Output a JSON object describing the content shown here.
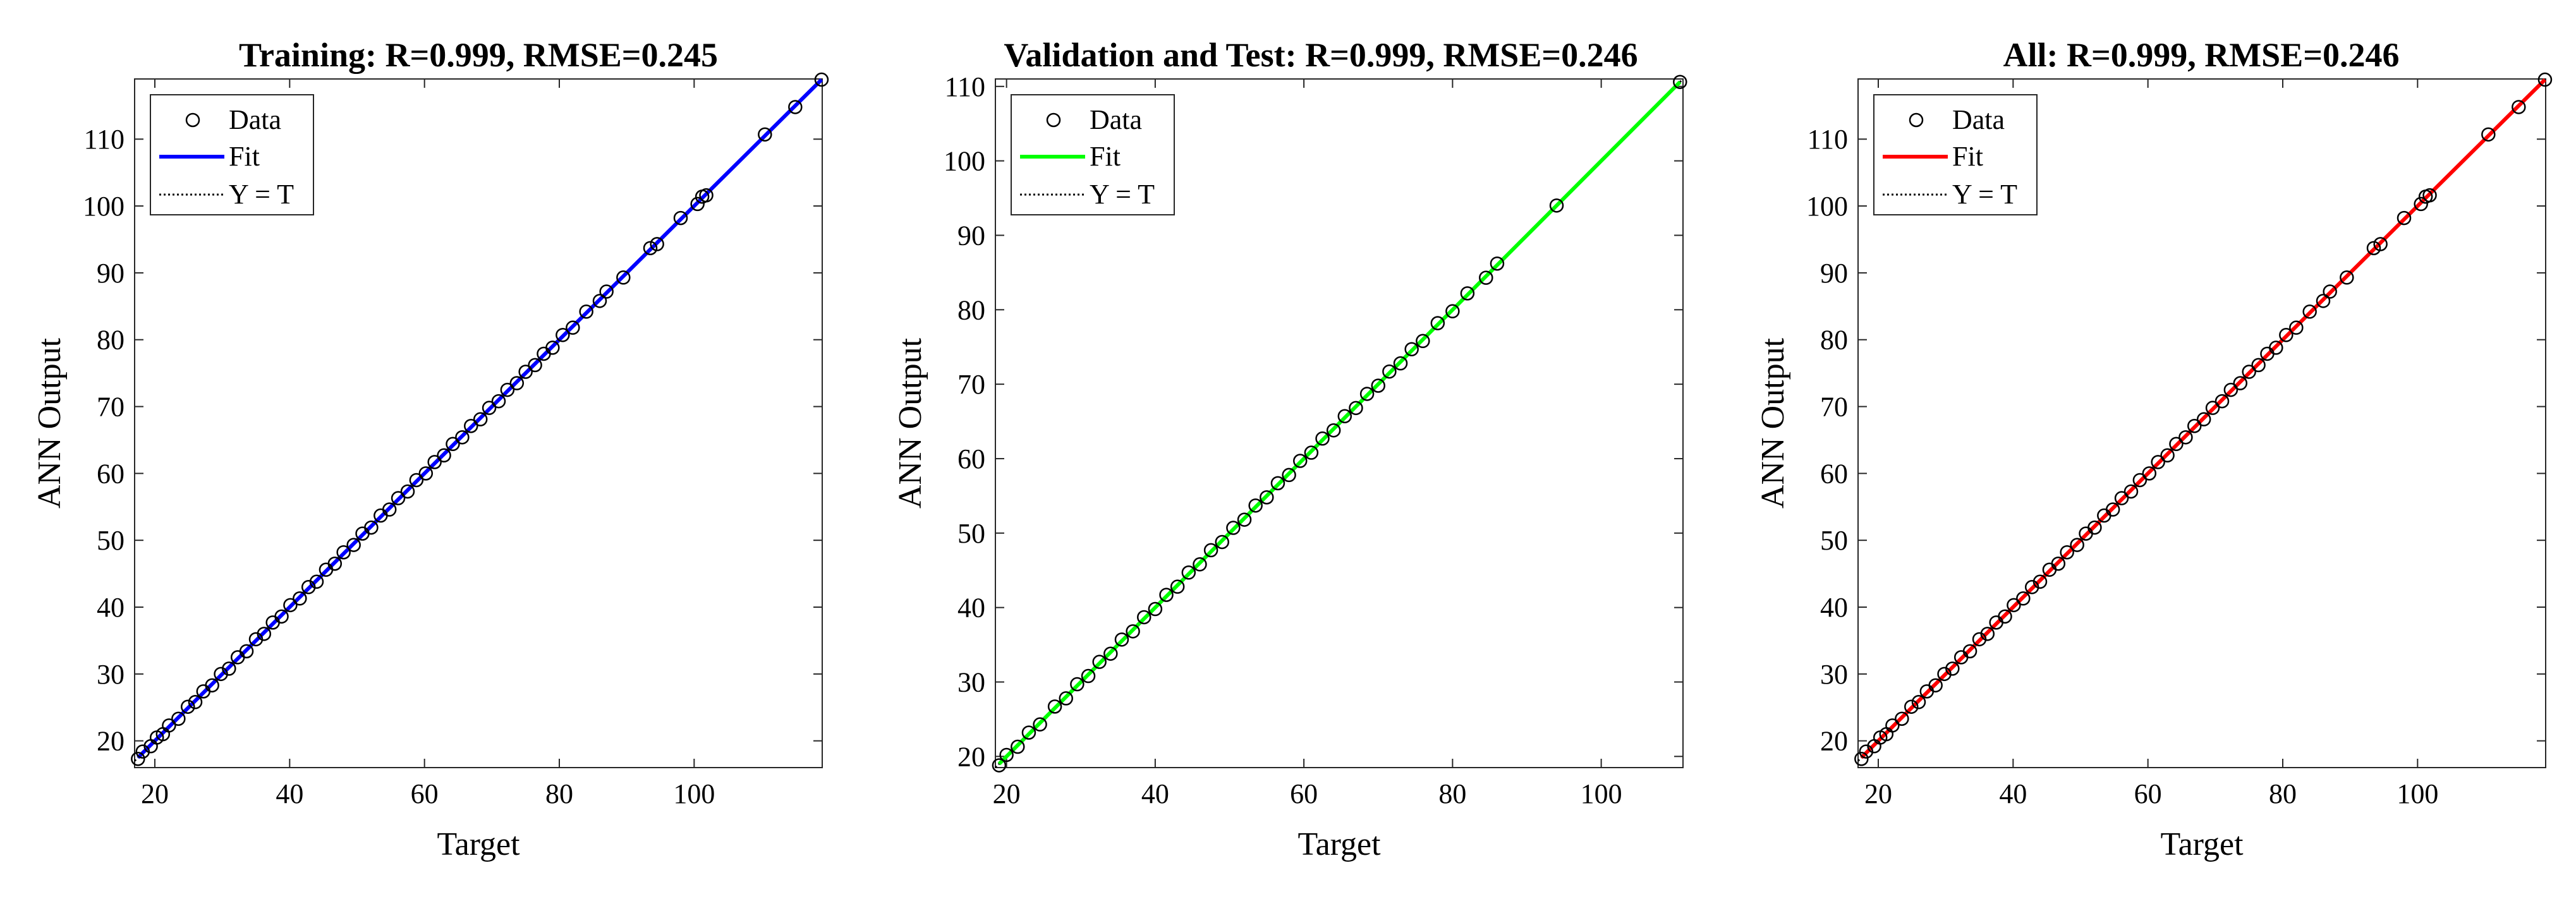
{
  "chart_data": [
    {
      "type": "scatter",
      "title": "Training: R=0.999, RMSE=0.245",
      "xlabel": "Target",
      "ylabel": "ANN Output",
      "xlim": [
        17,
        119
      ],
      "ylim": [
        16,
        119
      ],
      "xticks": [
        20,
        40,
        60,
        80,
        100
      ],
      "yticks": [
        20,
        30,
        40,
        50,
        60,
        70,
        80,
        90,
        100,
        110
      ],
      "fit_color": "#0000ff",
      "fit_line": {
        "x": [
          17.5,
          118.9
        ],
        "y": [
          17.5,
          118.9
        ]
      },
      "legend": [
        "Data",
        "Fit",
        "Y = T"
      ],
      "legend_position": "top-left",
      "grid": false,
      "points": {
        "x": [
          17.5,
          18.2,
          19.4,
          20.3,
          21.2,
          22.1,
          23.5,
          24.9,
          26.0,
          27.2,
          28.5,
          29.8,
          31.0,
          32.3,
          33.6,
          35.0,
          36.2,
          37.5,
          38.8,
          40.1,
          41.5,
          42.8,
          44.0,
          45.4,
          46.7,
          48.0,
          49.5,
          50.8,
          52.1,
          53.5,
          54.8,
          56.1,
          57.5,
          58.8,
          60.2,
          61.5,
          62.9,
          64.2,
          65.6,
          66.9,
          68.3,
          69.6,
          71.0,
          72.3,
          73.7,
          75.0,
          76.4,
          77.7,
          79.0,
          80.5,
          82.0,
          84.0,
          86.0,
          87.0,
          89.5,
          93.5,
          94.5,
          98.0,
          100.5,
          101.2,
          101.8,
          110.5,
          115.0,
          118.9
        ],
        "y": [
          17.3,
          18.4,
          19.2,
          20.5,
          21.0,
          22.3,
          23.3,
          25.1,
          25.8,
          27.4,
          28.3,
          30.0,
          30.8,
          32.5,
          33.4,
          35.2,
          36.0,
          37.7,
          38.6,
          40.3,
          41.3,
          43.0,
          43.8,
          45.6,
          46.5,
          48.2,
          49.3,
          51.0,
          51.9,
          53.7,
          54.6,
          56.3,
          57.3,
          59.0,
          60.0,
          61.7,
          62.7,
          64.4,
          65.4,
          67.1,
          68.1,
          69.8,
          70.8,
          72.5,
          73.5,
          75.2,
          76.2,
          77.9,
          78.8,
          80.7,
          81.8,
          84.2,
          85.8,
          87.2,
          89.3,
          93.7,
          94.3,
          98.2,
          100.3,
          101.4,
          101.6,
          110.7,
          114.8,
          118.9
        ]
      }
    },
    {
      "type": "scatter",
      "title": "Validation and Test: R=0.999, RMSE=0.246",
      "xlabel": "Target",
      "ylabel": "ANN Output",
      "xlim": [
        18.5,
        111
      ],
      "ylim": [
        18.5,
        111
      ],
      "xticks": [
        20,
        40,
        60,
        80,
        100
      ],
      "yticks": [
        20,
        30,
        40,
        50,
        60,
        70,
        80,
        90,
        100,
        110
      ],
      "fit_color": "#00ff00",
      "fit_line": {
        "x": [
          19.0,
          110.6
        ],
        "y": [
          19.0,
          110.6
        ]
      },
      "legend": [
        "Data",
        "Fit",
        "Y = T"
      ],
      "legend_position": "top-left",
      "grid": false,
      "points": {
        "x": [
          19.0,
          20.0,
          21.5,
          23.0,
          24.5,
          26.5,
          28.0,
          29.5,
          31.0,
          32.5,
          34.0,
          35.5,
          37.0,
          38.5,
          40.0,
          41.5,
          43.0,
          44.5,
          46.0,
          47.5,
          49.0,
          50.5,
          52.0,
          53.5,
          55.0,
          56.5,
          58.0,
          59.5,
          61.0,
          62.5,
          64.0,
          65.5,
          67.0,
          68.5,
          70.0,
          71.5,
          73.0,
          74.5,
          76.0,
          78.0,
          80.0,
          82.0,
          84.5,
          86.0,
          94.0,
          110.6
        ],
        "y": [
          18.8,
          20.2,
          21.3,
          23.2,
          24.3,
          26.7,
          27.8,
          29.7,
          30.8,
          32.7,
          33.8,
          35.7,
          36.8,
          38.7,
          39.8,
          41.7,
          42.8,
          44.7,
          45.8,
          47.7,
          48.8,
          50.7,
          51.8,
          53.7,
          54.8,
          56.7,
          57.8,
          59.7,
          60.8,
          62.7,
          63.8,
          65.7,
          66.8,
          68.7,
          69.8,
          71.7,
          72.8,
          74.7,
          75.8,
          78.2,
          79.8,
          82.2,
          84.3,
          86.2,
          94.0,
          110.6
        ]
      }
    },
    {
      "type": "scatter",
      "title": "All: R=0.999, RMSE=0.246",
      "xlabel": "Target",
      "ylabel": "ANN Output",
      "xlim": [
        17,
        119
      ],
      "ylim": [
        16,
        119
      ],
      "xticks": [
        20,
        40,
        60,
        80,
        100
      ],
      "yticks": [
        20,
        30,
        40,
        50,
        60,
        70,
        80,
        90,
        100,
        110
      ],
      "fit_color": "#ff0000",
      "fit_line": {
        "x": [
          17.5,
          118.9
        ],
        "y": [
          17.5,
          118.9
        ]
      },
      "legend": [
        "Data",
        "Fit",
        "Y = T"
      ],
      "legend_position": "top-left",
      "grid": false,
      "points": {
        "x": [
          17.5,
          18.2,
          19.4,
          20.3,
          21.2,
          22.1,
          23.5,
          24.9,
          26.0,
          27.2,
          28.5,
          29.8,
          31.0,
          32.3,
          33.6,
          35.0,
          36.2,
          37.5,
          38.8,
          40.1,
          41.5,
          42.8,
          44.0,
          45.4,
          46.7,
          48.0,
          49.5,
          50.8,
          52.1,
          53.5,
          54.8,
          56.1,
          57.5,
          58.8,
          60.2,
          61.5,
          62.9,
          64.2,
          65.6,
          66.9,
          68.3,
          69.6,
          71.0,
          72.3,
          73.7,
          75.0,
          76.4,
          77.7,
          79.0,
          80.5,
          82.0,
          84.0,
          86.0,
          87.0,
          89.5,
          93.5,
          94.5,
          98.0,
          100.5,
          101.2,
          101.8,
          110.5,
          115.0,
          118.9
        ],
        "y": [
          17.3,
          18.4,
          19.2,
          20.5,
          21.0,
          22.3,
          23.3,
          25.1,
          25.8,
          27.4,
          28.3,
          30.0,
          30.8,
          32.5,
          33.4,
          35.2,
          36.0,
          37.7,
          38.6,
          40.3,
          41.3,
          43.0,
          43.8,
          45.6,
          46.5,
          48.2,
          49.3,
          51.0,
          51.9,
          53.7,
          54.6,
          56.3,
          57.3,
          59.0,
          60.0,
          61.7,
          62.7,
          64.4,
          65.4,
          67.1,
          68.1,
          69.8,
          70.8,
          72.5,
          73.5,
          75.2,
          76.2,
          77.9,
          78.8,
          80.7,
          81.8,
          84.2,
          85.8,
          87.2,
          89.3,
          93.7,
          94.3,
          98.2,
          100.3,
          101.4,
          101.6,
          110.7,
          114.8,
          118.9
        ]
      }
    }
  ]
}
